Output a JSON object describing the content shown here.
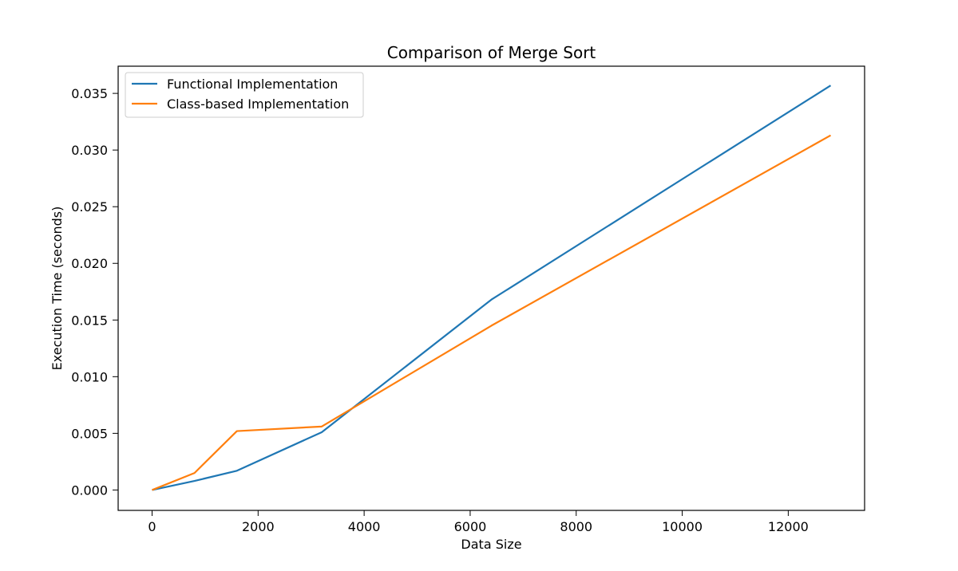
{
  "chart_data": {
    "type": "line",
    "title": "Comparison of Merge Sort",
    "xlabel": "Data Size",
    "ylabel": "Execution Time (seconds)",
    "xlim": [
      -640,
      13440
    ],
    "ylim": [
      -0.0018,
      0.0374
    ],
    "x_ticks": [
      0,
      2000,
      4000,
      6000,
      8000,
      10000,
      12000
    ],
    "x_tick_labels": [
      "0",
      "2000",
      "4000",
      "6000",
      "8000",
      "10000",
      "12000"
    ],
    "y_ticks": [
      0.0,
      0.005,
      0.01,
      0.015,
      0.02,
      0.025,
      0.03,
      0.035
    ],
    "y_tick_labels": [
      "0.000",
      "0.005",
      "0.010",
      "0.015",
      "0.020",
      "0.025",
      "0.030",
      "0.035"
    ],
    "grid": false,
    "legend_position": "top-left",
    "x": [
      0,
      800,
      1600,
      3200,
      6400,
      12800
    ],
    "series": [
      {
        "name": "Functional Implementation",
        "color": "#1f77b4",
        "values": [
          0.0,
          0.0008,
          0.0017,
          0.0051,
          0.0168,
          0.0357
        ]
      },
      {
        "name": "Class-based Implementation",
        "color": "#ff7f0e",
        "values": [
          0.0,
          0.0015,
          0.0052,
          0.0056,
          0.0145,
          0.0313
        ]
      }
    ]
  }
}
